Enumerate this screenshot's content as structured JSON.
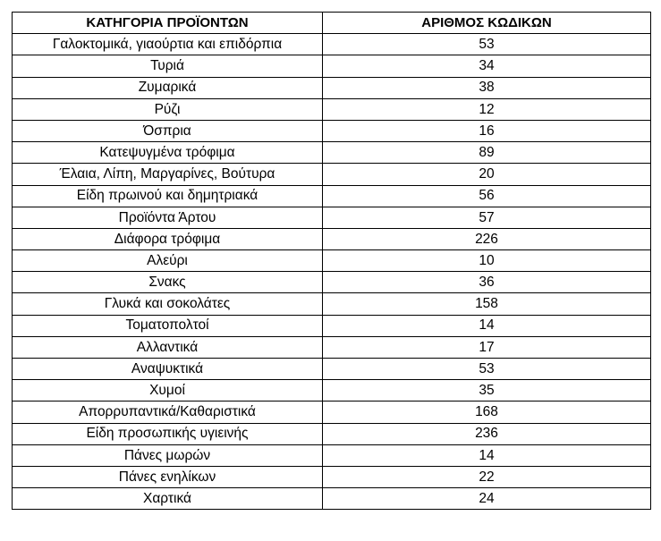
{
  "table": {
    "headers": [
      "ΚΑΤΗΓΟΡΙΑ ΠΡΟΪΟΝΤΩΝ",
      "ΑΡΙΘΜΟΣ ΚΩΔΙΚΩΝ"
    ],
    "rows": [
      [
        "Γαλοκτομικά, γιαούρτια και επιδόρπια",
        "53"
      ],
      [
        "Τυριά",
        "34"
      ],
      [
        "Ζυμαρικά",
        "38"
      ],
      [
        "Ρύζι",
        "12"
      ],
      [
        "Όσπρια",
        "16"
      ],
      [
        "Κατεψυγμένα τρόφιμα",
        "89"
      ],
      [
        "Έλαια, Λίπη, Μαργαρίνες, Βούτυρα",
        "20"
      ],
      [
        "Είδη πρωινού και δημητριακά",
        "56"
      ],
      [
        "Προϊόντα Άρτου",
        "57"
      ],
      [
        "Διάφορα τρόφιμα",
        "226"
      ],
      [
        "Αλεύρι",
        "10"
      ],
      [
        "Σνακς",
        "36"
      ],
      [
        "Γλυκά και σοκολάτες",
        "158"
      ],
      [
        "Τοματοπολτοί",
        "14"
      ],
      [
        "Αλλαντικά",
        "17"
      ],
      [
        "Αναψυκτικά",
        "53"
      ],
      [
        "Χυμοί",
        "35"
      ],
      [
        "Απορρυπαντικά/Καθαριστικά",
        "168"
      ],
      [
        "Είδη προσωπικής υγιεινής",
        "236"
      ],
      [
        "Πάνες μωρών",
        "14"
      ],
      [
        "Πάνες ενηλίκων",
        "22"
      ],
      [
        "Χαρτικά",
        "24"
      ]
    ]
  }
}
